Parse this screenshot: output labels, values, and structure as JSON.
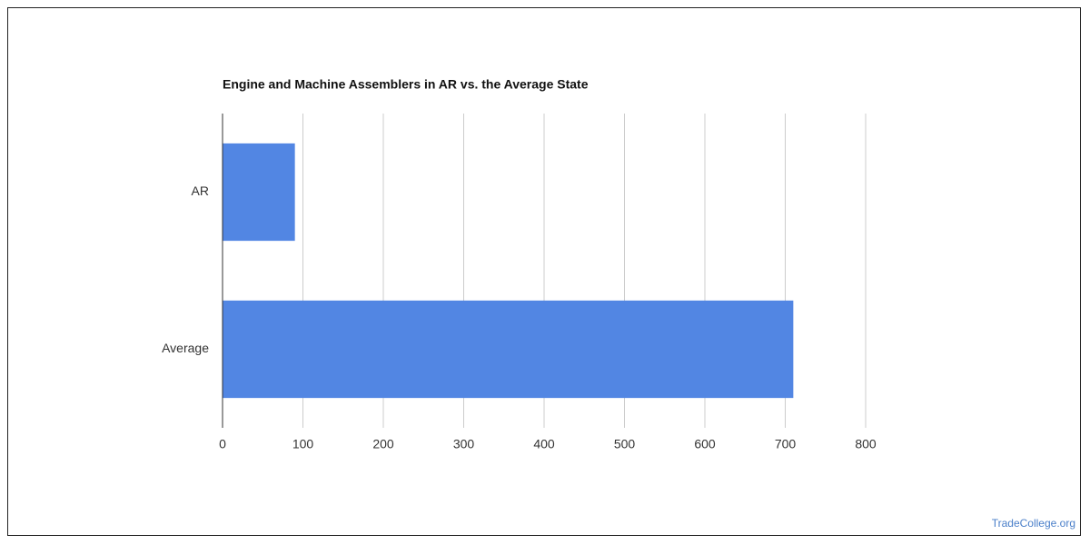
{
  "chart_data": {
    "type": "bar",
    "orientation": "horizontal",
    "title": "Engine and Machine Assemblers in AR vs. the Average State",
    "categories": [
      "AR",
      "Average"
    ],
    "values": [
      90,
      710
    ],
    "color": "#5286e3",
    "xlim": [
      0,
      800
    ],
    "xticks": [
      0,
      100,
      200,
      300,
      400,
      500,
      600,
      700,
      800
    ],
    "grid": true
  },
  "footer": {
    "credit": "TradeCollege.org"
  }
}
